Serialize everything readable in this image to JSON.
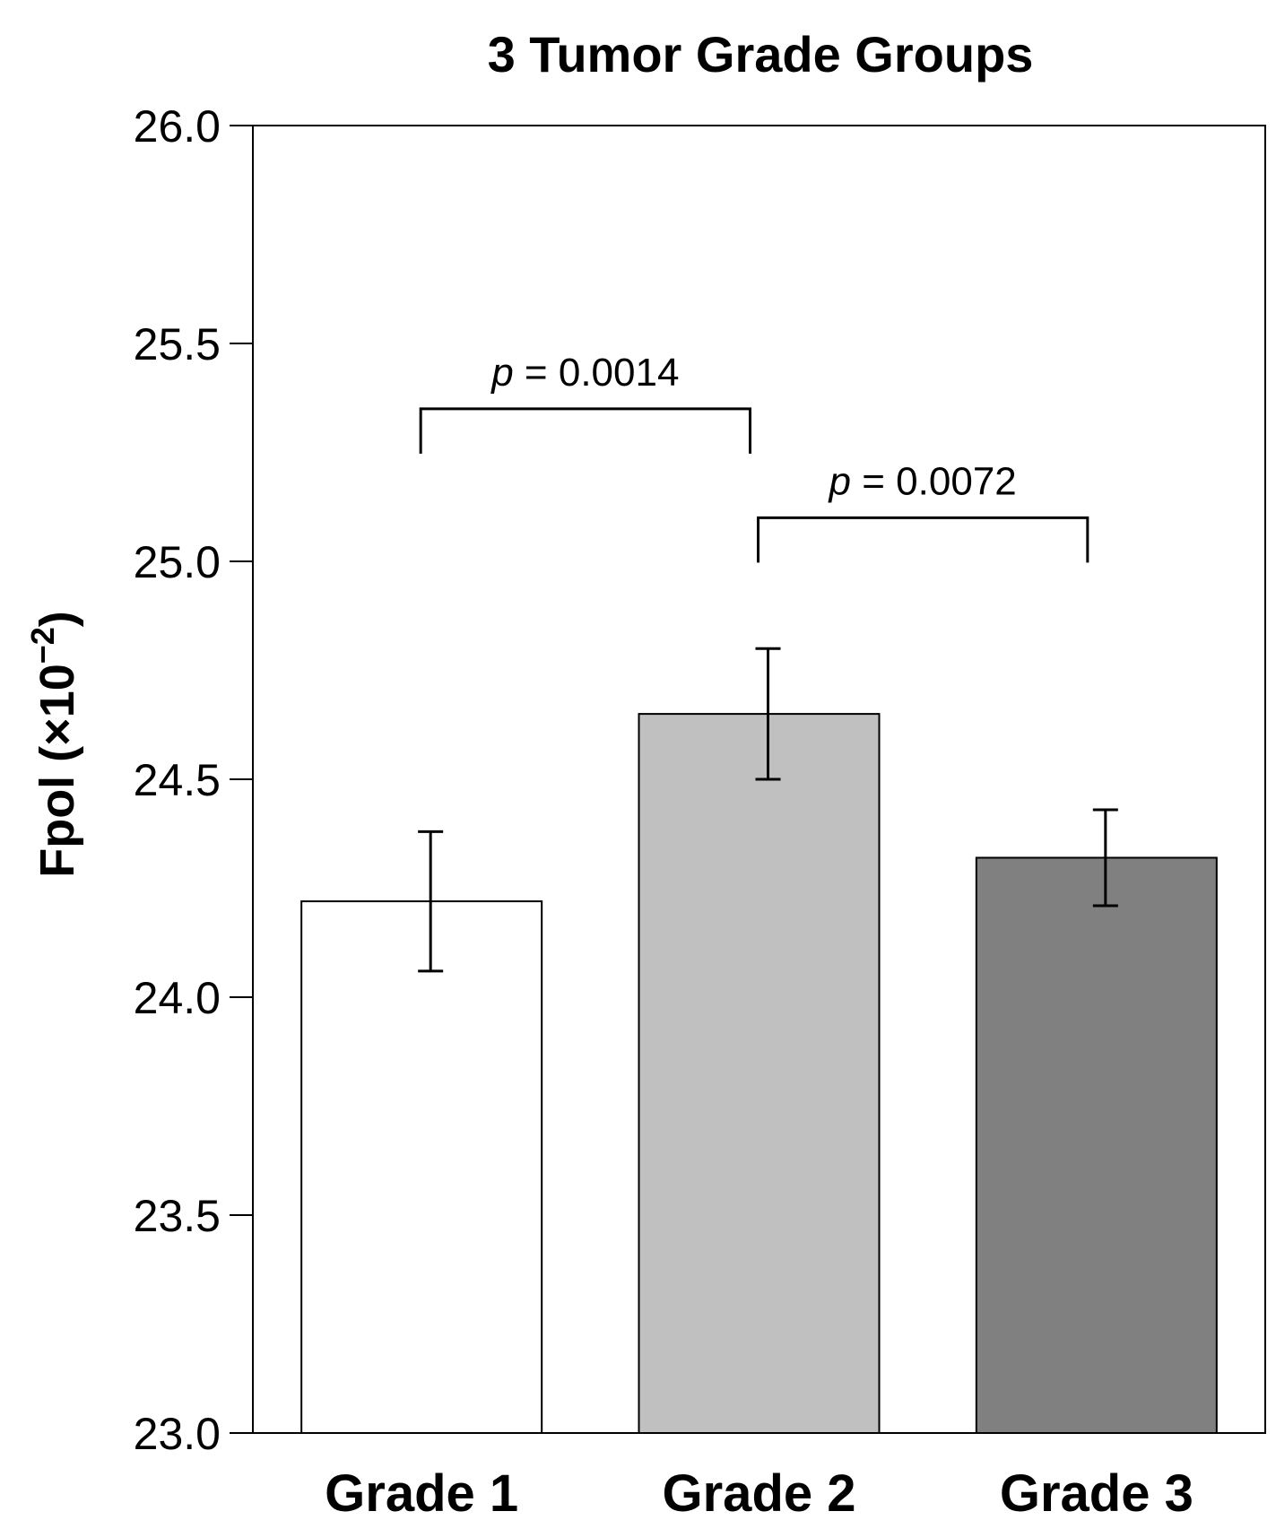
{
  "chart_data": {
    "type": "bar",
    "title": "3 Tumor Grade Groups",
    "ylabel": "Fpol (×10",
    "ylabel_superscript": "−2",
    "ylabel_close": ")",
    "ylim": [
      23.0,
      26.0
    ],
    "yticks": [
      "23.0",
      "23.5",
      "24.0",
      "24.5",
      "25.0",
      "25.5",
      "26.0"
    ],
    "categories": [
      "Grade 1",
      "Grade 2",
      "Grade 3"
    ],
    "values": [
      24.22,
      24.65,
      24.32
    ],
    "errors": [
      0.16,
      0.15,
      0.11
    ],
    "colors": [
      "#ffffff",
      "#c0c0c0",
      "#808080"
    ],
    "grid": false,
    "annotations": [
      {
        "from": 0,
        "to": 1,
        "label_p": "p",
        "label_rest": " = 0.0014",
        "y_level": 25.35
      },
      {
        "from": 1,
        "to": 2,
        "label_p": "p",
        "label_rest": " = 0.0072",
        "y_level": 25.1
      }
    ]
  }
}
